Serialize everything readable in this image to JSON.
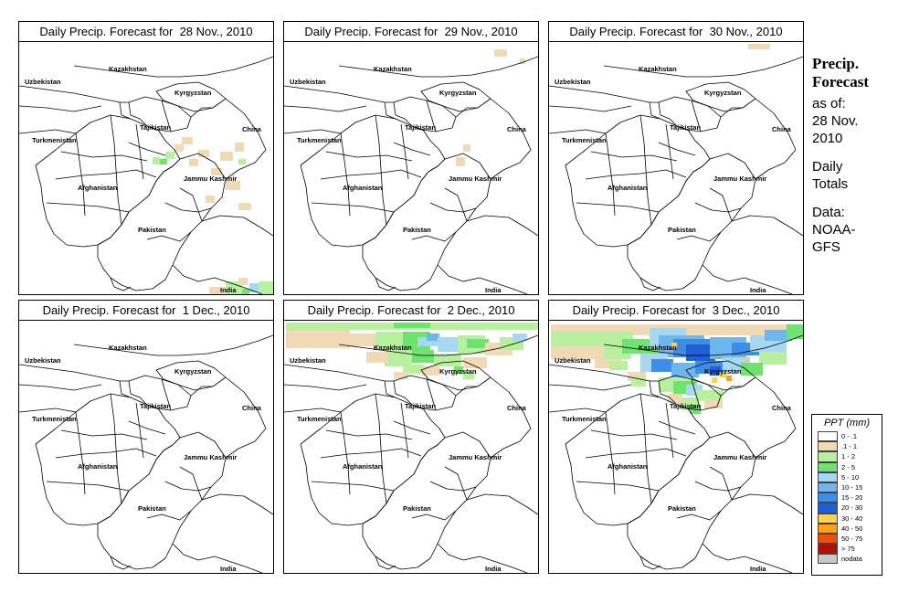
{
  "panels": [
    {
      "title": "Daily Precip. Forecast for  28 Nov., 2010"
    },
    {
      "title": "Daily Precip. Forecast for  29 Nov., 2010"
    },
    {
      "title": "Daily Precip. Forecast for  30 Nov., 2010"
    },
    {
      "title": "Daily Precip. Forecast for  1 Dec., 2010"
    },
    {
      "title": "Daily Precip. Forecast for  2 Dec., 2010"
    },
    {
      "title": "Daily Precip. Forecast for  3 Dec., 2010"
    }
  ],
  "map_labels": {
    "uzbekistan": "Uzbekistan",
    "kazakhstan": "Kazakhstan",
    "kyrgyzstan": "Kyrgyzstan",
    "tajikistan": "Tajikistan",
    "china": "China",
    "turkmenistan": "Turkmenistan",
    "afghanistan": "Afghanistan",
    "jammu_kashmir": "Jammu Kashmir",
    "pakistan": "Pakistan",
    "india": "India"
  },
  "sidebar": {
    "title_line1": "Precip.",
    "title_line2": "Forecast",
    "asof_line1": "as of:",
    "asof_line2": "28 Nov.",
    "asof_line3": "2010",
    "daily_line1": "Daily",
    "daily_line2": "Totals",
    "data_line1": "Data:",
    "data_line2": "NOAA-",
    "data_line3": "GFS"
  },
  "legend": {
    "title": "PPT (mm)",
    "entries": [
      {
        "label": "0 - .1",
        "color": "#ffffff"
      },
      {
        "label": ".1 - 1",
        "color": "#f0d9b5"
      },
      {
        "label": "1 - 2",
        "color": "#b9f0a0"
      },
      {
        "label": "2 - 5",
        "color": "#6fe36f"
      },
      {
        "label": "5 - 10",
        "color": "#a6d8f2"
      },
      {
        "label": "10 - 15",
        "color": "#6fb6ee"
      },
      {
        "label": "15 - 20",
        "color": "#3f8de6"
      },
      {
        "label": "20 - 30",
        "color": "#1c5fd6"
      },
      {
        "label": "30 - 40",
        "color": "#ffd24a"
      },
      {
        "label": "40 - 50",
        "color": "#ffa11a"
      },
      {
        "label": "50 - 75",
        "color": "#ff4b00"
      },
      {
        "label": "> 75",
        "color": "#b01000"
      },
      {
        "label": "nodata",
        "color": "#c8c8c8"
      }
    ]
  }
}
